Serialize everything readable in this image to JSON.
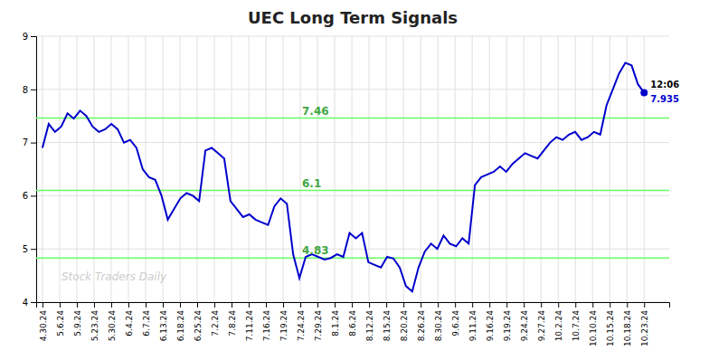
{
  "chart_data": {
    "type": "line",
    "title": "UEC Long Term Signals",
    "color": "#0000cc",
    "x": [
      0,
      1,
      2,
      3,
      4,
      5,
      6,
      7,
      8,
      9,
      10,
      11,
      12,
      13,
      14,
      15,
      16,
      17,
      18,
      19,
      20,
      21,
      22,
      23,
      24,
      25,
      26,
      27,
      28,
      29,
      30,
      31,
      32,
      33,
      34,
      35,
      36,
      37,
      38,
      39,
      40,
      41,
      42,
      43,
      44,
      45,
      46,
      47,
      48,
      49,
      50,
      51,
      52,
      53,
      54,
      55,
      56,
      57,
      58,
      59,
      60,
      61,
      62,
      63,
      64,
      65,
      66,
      67,
      68,
      69,
      70,
      71,
      72,
      73,
      74,
      75,
      76,
      77,
      78,
      79,
      80,
      81,
      82,
      83,
      84,
      85,
      86,
      87,
      88,
      89,
      90,
      91,
      92,
      93,
      94,
      95,
      96
    ],
    "values": [
      6.9,
      7.35,
      7.2,
      7.3,
      7.55,
      7.45,
      7.6,
      7.5,
      7.3,
      7.2,
      7.25,
      7.35,
      7.25,
      7.0,
      7.05,
      6.9,
      6.5,
      6.35,
      6.3,
      6.0,
      5.55,
      5.75,
      5.95,
      6.05,
      6.0,
      5.9,
      6.85,
      6.9,
      6.8,
      6.7,
      5.9,
      5.75,
      5.6,
      5.65,
      5.55,
      5.5,
      5.45,
      5.8,
      5.95,
      5.85,
      4.9,
      4.45,
      4.85,
      4.9,
      4.85,
      4.8,
      4.83,
      4.9,
      4.85,
      5.3,
      5.2,
      5.3,
      4.75,
      4.7,
      4.65,
      4.85,
      4.82,
      4.65,
      4.3,
      4.2,
      4.65,
      4.95,
      5.1,
      5.0,
      5.25,
      5.1,
      5.05,
      5.2,
      5.1,
      6.2,
      6.35,
      6.4,
      6.45,
      6.55,
      6.45,
      6.6,
      6.7,
      6.8,
      6.75,
      6.7,
      6.85,
      7.0,
      7.1,
      7.05,
      7.15,
      7.2,
      7.05,
      7.1,
      7.2,
      7.15,
      7.7,
      8.0,
      8.3,
      8.5,
      8.45,
      8.1,
      7.935
    ],
    "xlim": [
      -1,
      100
    ],
    "xticks": [
      {
        "value": 0,
        "label": "4.30.24"
      },
      {
        "value": 2.742857,
        "label": "5.6.24"
      },
      {
        "value": 5.485714,
        "label": "5.9.24"
      },
      {
        "value": 8.228571,
        "label": "5.23.24"
      },
      {
        "value": 10.971429,
        "label": "5.30.24"
      },
      {
        "value": 13.714286,
        "label": "6.4.24"
      },
      {
        "value": 16.457143,
        "label": "6.7.24"
      },
      {
        "value": 19.2,
        "label": "6.13.24"
      },
      {
        "value": 21.942857,
        "label": "6.18.24"
      },
      {
        "value": 24.685714,
        "label": "6.25.24"
      },
      {
        "value": 27.428571,
        "label": "7.2.24"
      },
      {
        "value": 30.171429,
        "label": "7.8.24"
      },
      {
        "value": 32.914286,
        "label": "7.11.24"
      },
      {
        "value": 35.657143,
        "label": "7.16.24"
      },
      {
        "value": 38.4,
        "label": "7.19.24"
      },
      {
        "value": 41.142857,
        "label": "7.24.24"
      },
      {
        "value": 43.885714,
        "label": "7.29.24"
      },
      {
        "value": 46.628571,
        "label": "8.1.24"
      },
      {
        "value": 49.371429,
        "label": "8.6.24"
      },
      {
        "value": 52.114286,
        "label": "8.12.24"
      },
      {
        "value": 54.857143,
        "label": "8.15.24"
      },
      {
        "value": 57.6,
        "label": "8.20.24"
      },
      {
        "value": 60.342857,
        "label": "8.26.24"
      },
      {
        "value": 63.085714,
        "label": "8.30.24"
      },
      {
        "value": 65.828571,
        "label": "9.6.24"
      },
      {
        "value": 68.571429,
        "label": "9.11.24"
      },
      {
        "value": 71.314286,
        "label": "9.16.24"
      },
      {
        "value": 74.057143,
        "label": "9.19.24"
      },
      {
        "value": 76.8,
        "label": "9.24.24"
      },
      {
        "value": 79.542857,
        "label": "9.27.24"
      },
      {
        "value": 82.285714,
        "label": "10.2.24"
      },
      {
        "value": 85.028571,
        "label": "10.7.24"
      },
      {
        "value": 87.771429,
        "label": "10.10.24"
      },
      {
        "value": 90.514286,
        "label": "10.15.24"
      },
      {
        "value": 93.257143,
        "label": "10.18.24"
      },
      {
        "value": 96,
        "label": "10.23.24"
      }
    ],
    "ylim": [
      4.0,
      9.0
    ],
    "yticks": [
      4,
      5,
      6,
      7,
      8,
      9
    ],
    "grid": true,
    "hlines": [
      {
        "value": 7.46,
        "label": "7.46",
        "color": "#66ff66"
      },
      {
        "value": 6.1,
        "label": "6.1",
        "color": "#66ff66"
      },
      {
        "value": 4.83,
        "label": "4.83",
        "color": "#66ff66"
      }
    ],
    "annotations": [
      "12:06",
      "7.935"
    ],
    "watermark": "Stock Traders Daily"
  }
}
